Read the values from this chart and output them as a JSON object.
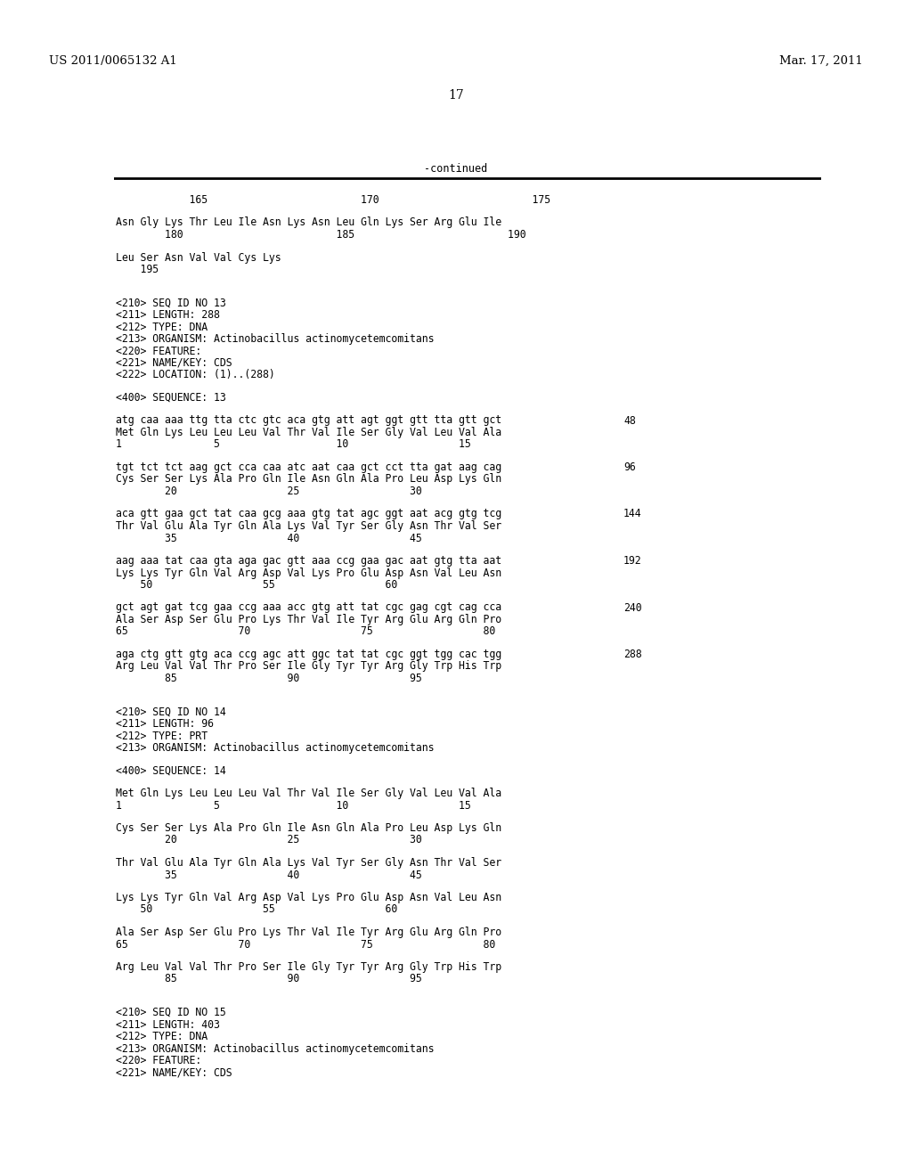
{
  "header_left": "US 2011/0065132 A1",
  "header_right": "Mar. 17, 2011",
  "page_number": "17",
  "continued_label": "-continued",
  "background_color": "#ffffff",
  "text_color": "#000000",
  "content_lines": [
    {
      "type": "ruler",
      "text": "            165                         170                         175"
    },
    {
      "type": "blank"
    },
    {
      "type": "text",
      "text": "Asn Gly Lys Thr Leu Ile Asn Lys Asn Leu Gln Lys Ser Arg Glu Ile"
    },
    {
      "type": "ruler",
      "text": "        180                         185                         190"
    },
    {
      "type": "blank"
    },
    {
      "type": "text",
      "text": "Leu Ser Asn Val Val Cys Lys"
    },
    {
      "type": "ruler",
      "text": "    195"
    },
    {
      "type": "blank"
    },
    {
      "type": "blank"
    },
    {
      "type": "text",
      "text": "<210> SEQ ID NO 13"
    },
    {
      "type": "text",
      "text": "<211> LENGTH: 288"
    },
    {
      "type": "text",
      "text": "<212> TYPE: DNA"
    },
    {
      "type": "text",
      "text": "<213> ORGANISM: Actinobacillus actinomycetemcomitans"
    },
    {
      "type": "text",
      "text": "<220> FEATURE:"
    },
    {
      "type": "text",
      "text": "<221> NAME/KEY: CDS"
    },
    {
      "type": "text",
      "text": "<222> LOCATION: (1)..(288)"
    },
    {
      "type": "blank"
    },
    {
      "type": "text",
      "text": "<400> SEQUENCE: 13"
    },
    {
      "type": "blank"
    },
    {
      "type": "seq",
      "dna": "atg caa aaa ttg tta ctc gtc aca gtg att agt ggt gtt tta gtt gct",
      "num": "48"
    },
    {
      "type": "text",
      "text": "Met Gln Lys Leu Leu Leu Val Thr Val Ile Ser Gly Val Leu Val Ala"
    },
    {
      "type": "ruler",
      "text": "1               5                   10                  15"
    },
    {
      "type": "blank"
    },
    {
      "type": "seq",
      "dna": "tgt tct tct aag gct cca caa atc aat caa gct cct tta gat aag cag",
      "num": "96"
    },
    {
      "type": "text",
      "text": "Cys Ser Ser Lys Ala Pro Gln Ile Asn Gln Ala Pro Leu Asp Lys Gln"
    },
    {
      "type": "ruler",
      "text": "        20                  25                  30"
    },
    {
      "type": "blank"
    },
    {
      "type": "seq",
      "dna": "aca gtt gaa gct tat caa gcg aaa gtg tat agc ggt aat acg gtg tcg",
      "num": "144"
    },
    {
      "type": "text",
      "text": "Thr Val Glu Ala Tyr Gln Ala Lys Val Tyr Ser Gly Asn Thr Val Ser"
    },
    {
      "type": "ruler",
      "text": "        35                  40                  45"
    },
    {
      "type": "blank"
    },
    {
      "type": "seq",
      "dna": "aag aaa tat caa gta aga gac gtt aaa ccg gaa gac aat gtg tta aat",
      "num": "192"
    },
    {
      "type": "text",
      "text": "Lys Lys Tyr Gln Val Arg Asp Val Lys Pro Glu Asp Asn Val Leu Asn"
    },
    {
      "type": "ruler",
      "text": "    50                  55                  60"
    },
    {
      "type": "blank"
    },
    {
      "type": "seq",
      "dna": "gct agt gat tcg gaa ccg aaa acc gtg att tat cgc gag cgt cag cca",
      "num": "240"
    },
    {
      "type": "text",
      "text": "Ala Ser Asp Ser Glu Pro Lys Thr Val Ile Tyr Arg Glu Arg Gln Pro"
    },
    {
      "type": "ruler",
      "text": "65                  70                  75                  80"
    },
    {
      "type": "blank"
    },
    {
      "type": "seq",
      "dna": "aga ctg gtt gtg aca ccg agc att ggc tat tat cgc ggt tgg cac tgg",
      "num": "288"
    },
    {
      "type": "text",
      "text": "Arg Leu Val Val Thr Pro Ser Ile Gly Tyr Tyr Arg Gly Trp His Trp"
    },
    {
      "type": "ruler",
      "text": "        85                  90                  95"
    },
    {
      "type": "blank"
    },
    {
      "type": "blank"
    },
    {
      "type": "text",
      "text": "<210> SEQ ID NO 14"
    },
    {
      "type": "text",
      "text": "<211> LENGTH: 96"
    },
    {
      "type": "text",
      "text": "<212> TYPE: PRT"
    },
    {
      "type": "text",
      "text": "<213> ORGANISM: Actinobacillus actinomycetemcomitans"
    },
    {
      "type": "blank"
    },
    {
      "type": "text",
      "text": "<400> SEQUENCE: 14"
    },
    {
      "type": "blank"
    },
    {
      "type": "text",
      "text": "Met Gln Lys Leu Leu Leu Val Thr Val Ile Ser Gly Val Leu Val Ala"
    },
    {
      "type": "ruler",
      "text": "1               5                   10                  15"
    },
    {
      "type": "blank"
    },
    {
      "type": "text",
      "text": "Cys Ser Ser Lys Ala Pro Gln Ile Asn Gln Ala Pro Leu Asp Lys Gln"
    },
    {
      "type": "ruler",
      "text": "        20                  25                  30"
    },
    {
      "type": "blank"
    },
    {
      "type": "text",
      "text": "Thr Val Glu Ala Tyr Gln Ala Lys Val Tyr Ser Gly Asn Thr Val Ser"
    },
    {
      "type": "ruler",
      "text": "        35                  40                  45"
    },
    {
      "type": "blank"
    },
    {
      "type": "text",
      "text": "Lys Lys Tyr Gln Val Arg Asp Val Lys Pro Glu Asp Asn Val Leu Asn"
    },
    {
      "type": "ruler",
      "text": "    50                  55                  60"
    },
    {
      "type": "blank"
    },
    {
      "type": "text",
      "text": "Ala Ser Asp Ser Glu Pro Lys Thr Val Ile Tyr Arg Glu Arg Gln Pro"
    },
    {
      "type": "ruler",
      "text": "65                  70                  75                  80"
    },
    {
      "type": "blank"
    },
    {
      "type": "text",
      "text": "Arg Leu Val Val Thr Pro Ser Ile Gly Tyr Tyr Arg Gly Trp His Trp"
    },
    {
      "type": "ruler",
      "text": "        85                  90                  95"
    },
    {
      "type": "blank"
    },
    {
      "type": "blank"
    },
    {
      "type": "text",
      "text": "<210> SEQ ID NO 15"
    },
    {
      "type": "text",
      "text": "<211> LENGTH: 403"
    },
    {
      "type": "text",
      "text": "<212> TYPE: DNA"
    },
    {
      "type": "text",
      "text": "<213> ORGANISM: Actinobacillus actinomycetemcomitans"
    },
    {
      "type": "text",
      "text": "<220> FEATURE:"
    },
    {
      "type": "text",
      "text": "<221> NAME/KEY: CDS"
    }
  ]
}
